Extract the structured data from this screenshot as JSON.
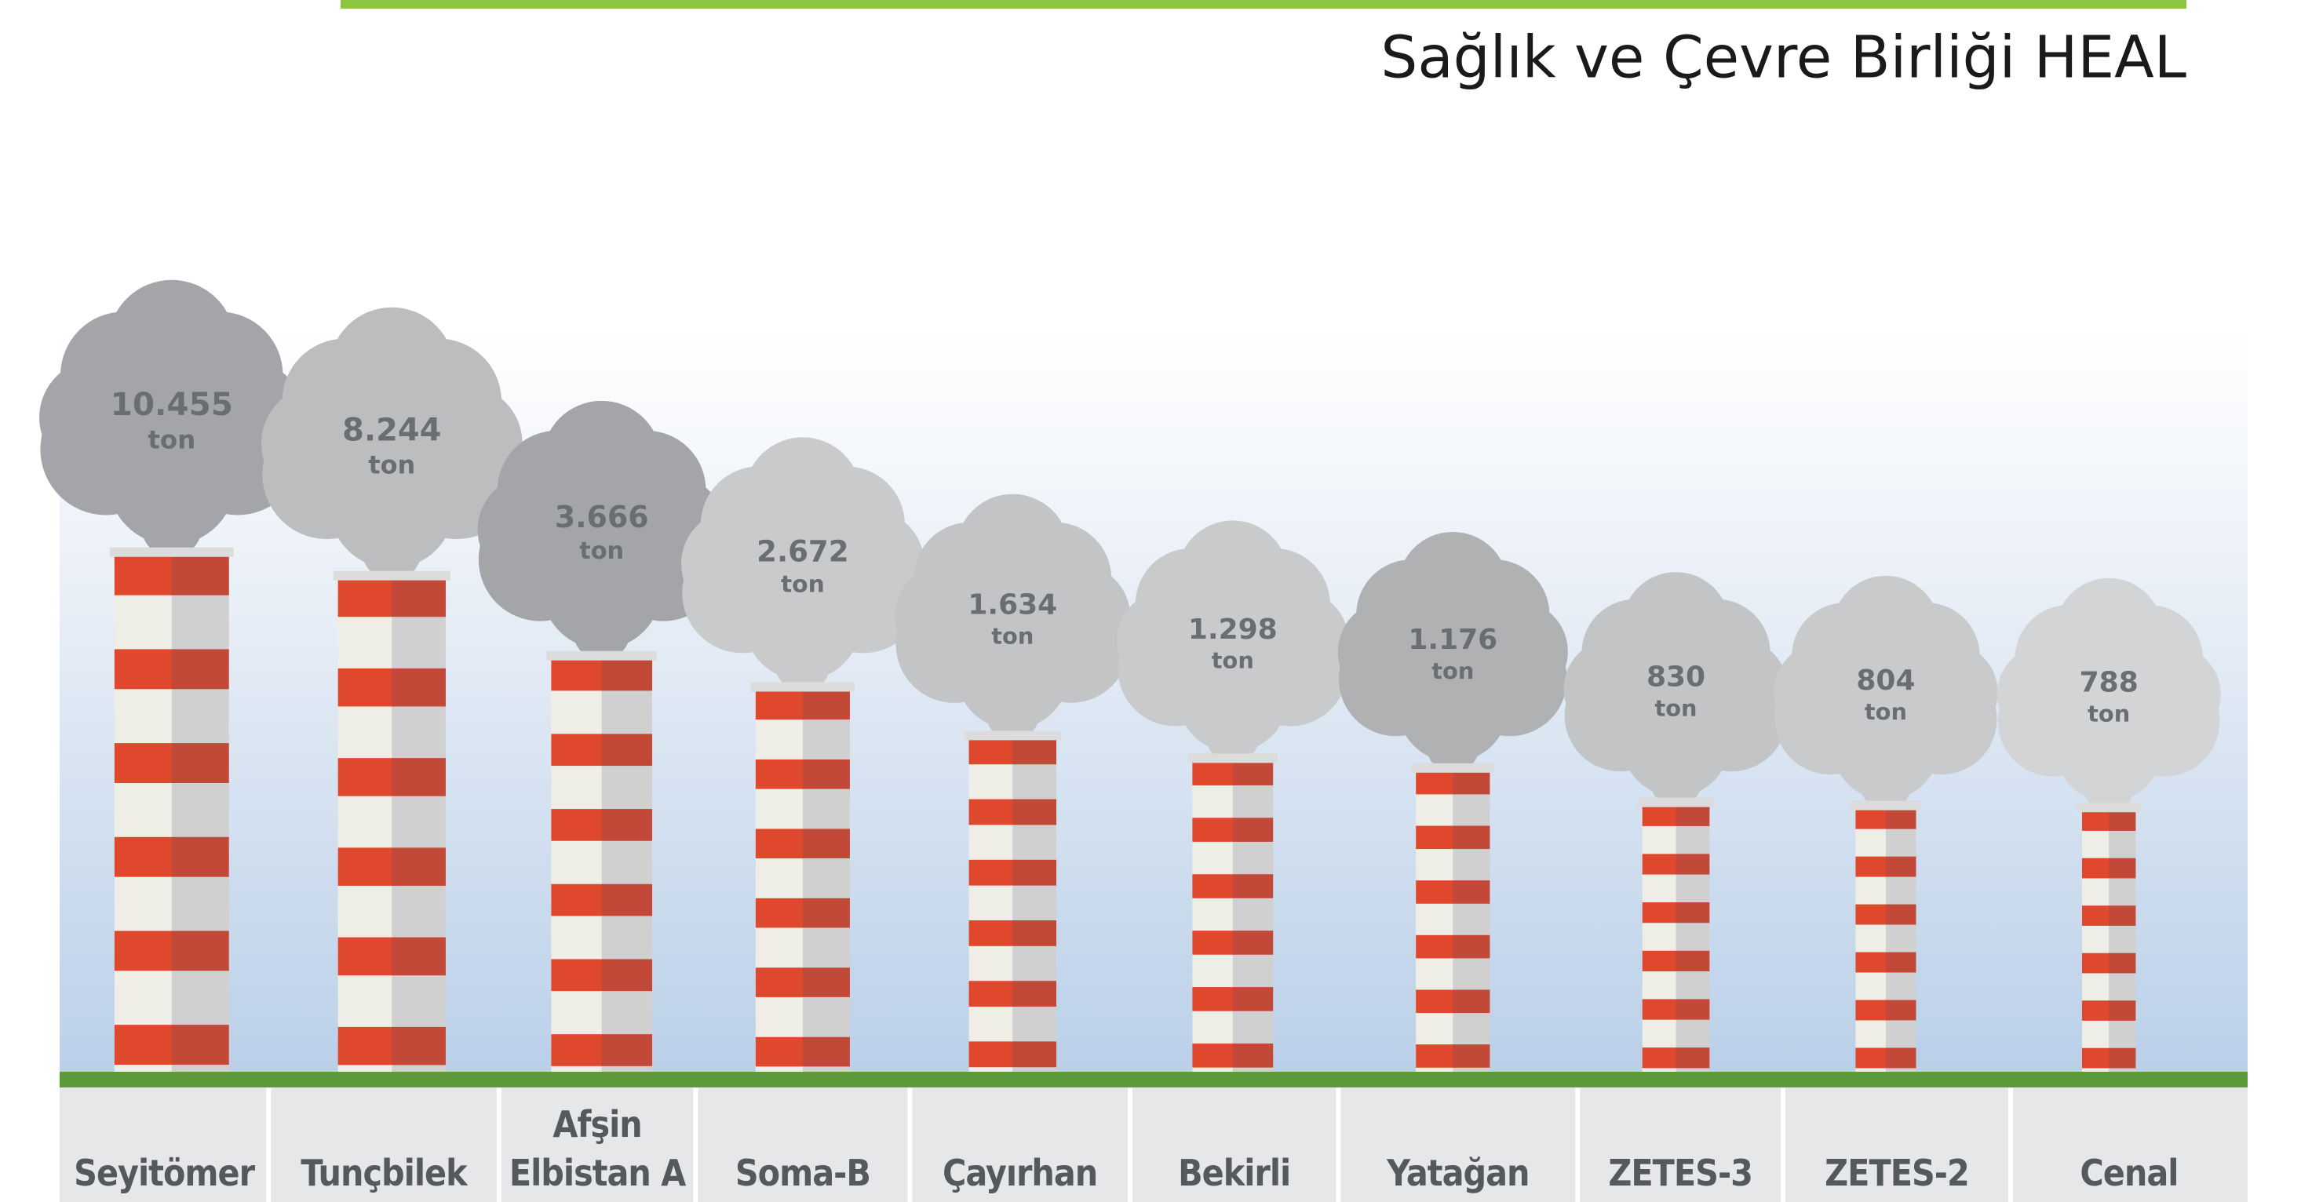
{
  "chart_data": {
    "type": "chimney",
    "source": "Sağlık ve Çevre Birliği HEAL",
    "unit": "ton",
    "categories": [
      "Seyitömer",
      "Tunçbilek",
      "Afşin Elbistan A",
      "Soma-B",
      "Çayırhan",
      "Bekirli",
      "Yatağan",
      "ZETES-3",
      "ZETES-2",
      "Cenal"
    ],
    "values": [
      10455,
      8244,
      3666,
      2672,
      1634,
      1298,
      1176,
      830,
      804,
      788
    ],
    "value_labels": [
      "10.455",
      "8.244",
      "3.666",
      "2.672",
      "1.634",
      "1.298",
      "1.176",
      "830",
      "804",
      "788"
    ],
    "cloud_colors": [
      "#a3a5a8",
      "#bcbdbf",
      "#a3a5a8",
      "#c9cacc",
      "#c3c4c6",
      "#c9cacc",
      "#b0b1b3",
      "#c3c4c6",
      "#c9cacc",
      "#d3d4d6"
    ],
    "stripe_colors": [
      "#e0482e",
      "#efeee6"
    ]
  }
}
